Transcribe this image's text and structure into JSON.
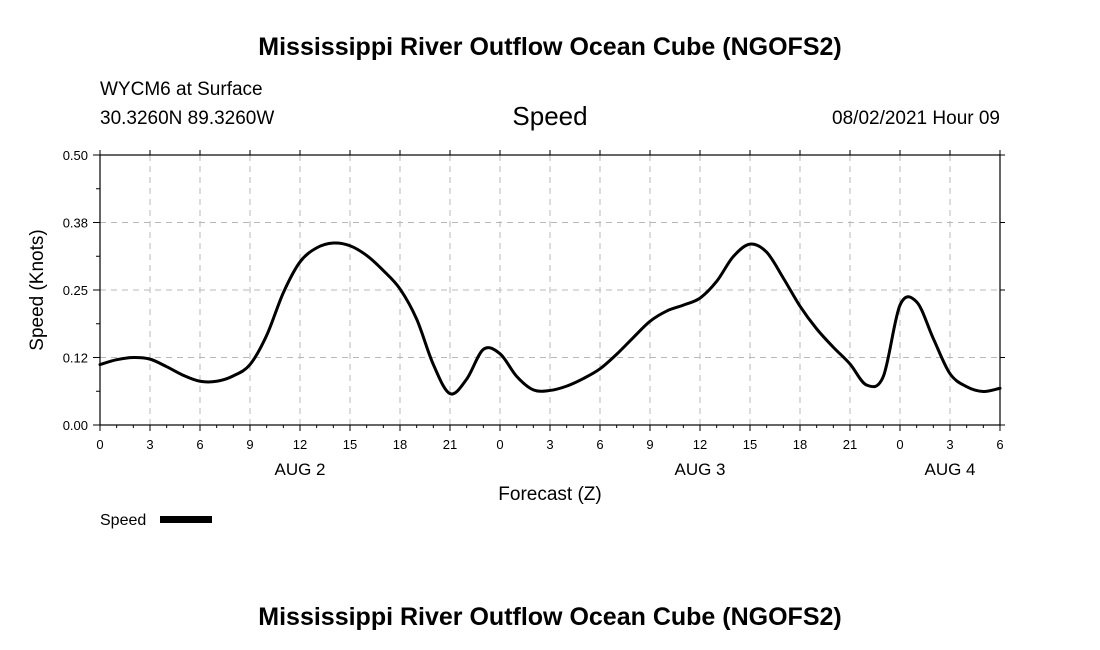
{
  "header": {
    "title_top": "Mississippi River Outflow Ocean Cube (NGOFS2)",
    "station": "WYCM6 at Surface",
    "coords": "30.3260N  89.3260W",
    "variable": "Speed",
    "datetime": "08/02/2021 Hour 09"
  },
  "footer": {
    "title_bottom": "Mississippi River Outflow Ocean Cube (NGOFS2)"
  },
  "legend": {
    "label": "Speed",
    "color": "#000000"
  },
  "chart_data": {
    "type": "line",
    "title": "Speed",
    "xlabel": "Forecast (Z)",
    "ylabel": "Speed (Knots)",
    "xlim": [
      0,
      54
    ],
    "ylim": [
      0,
      0.5
    ],
    "y_ticks": [
      "0.00",
      "0.12",
      "0.25",
      "0.38",
      "0.50"
    ],
    "x_tick_labels": [
      "0",
      "3",
      "6",
      "9",
      "12",
      "15",
      "18",
      "21",
      "0",
      "3",
      "6",
      "9",
      "12",
      "15",
      "18",
      "21",
      "0",
      "3",
      "6"
    ],
    "day_labels": [
      {
        "label": "AUG 2",
        "x": 12
      },
      {
        "label": "AUG 3",
        "x": 36
      },
      {
        "label": "AUG 4",
        "x": 51
      }
    ],
    "grid": true,
    "legend_position": "bottom-left",
    "series": [
      {
        "name": "Speed",
        "color": "#000000",
        "x": [
          0,
          1,
          2,
          3,
          4,
          5,
          6,
          7,
          8,
          9,
          10,
          11,
          12,
          13,
          14,
          15,
          16,
          17,
          18,
          19,
          20,
          21,
          22,
          23,
          24,
          25,
          26,
          27,
          28,
          29,
          30,
          31,
          32,
          33,
          34,
          35,
          36,
          37,
          38,
          39,
          40,
          41,
          42,
          43,
          44,
          45,
          46,
          47,
          48,
          49,
          50,
          51,
          52,
          53,
          54
        ],
        "y": [
          0.112,
          0.121,
          0.125,
          0.122,
          0.108,
          0.092,
          0.081,
          0.081,
          0.091,
          0.112,
          0.166,
          0.245,
          0.302,
          0.328,
          0.337,
          0.332,
          0.314,
          0.286,
          0.252,
          0.196,
          0.112,
          0.058,
          0.085,
          0.14,
          0.132,
          0.09,
          0.065,
          0.064,
          0.072,
          0.086,
          0.104,
          0.131,
          0.162,
          0.192,
          0.211,
          0.222,
          0.235,
          0.266,
          0.312,
          0.335,
          0.32,
          0.272,
          0.22,
          0.178,
          0.144,
          0.113,
          0.074,
          0.09,
          0.222,
          0.228,
          0.16,
          0.095,
          0.071,
          0.062,
          0.068
        ]
      }
    ]
  }
}
